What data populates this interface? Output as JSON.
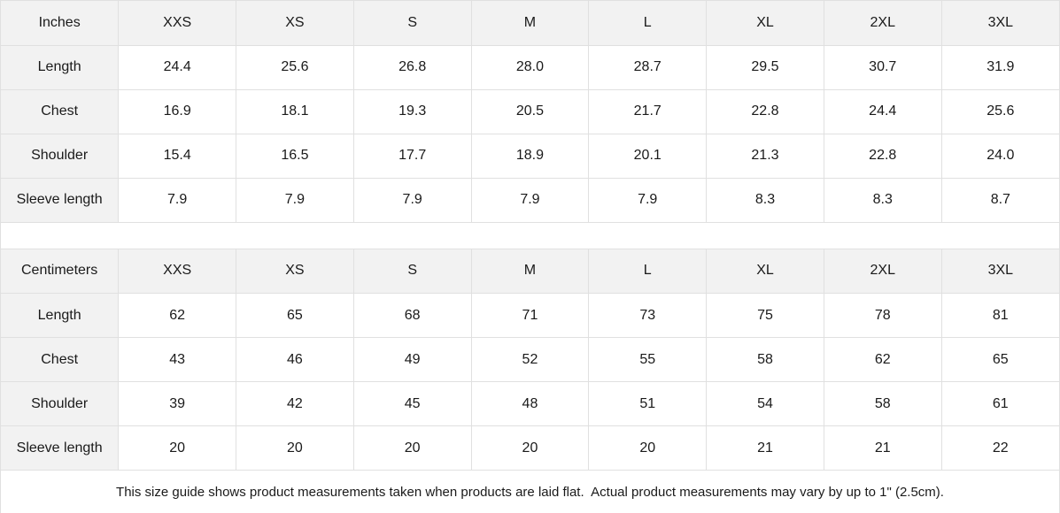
{
  "colors": {
    "border": "#e0e0e0",
    "header_cell_background": "#f2f2f2",
    "text": "#1a1a1a",
    "background": "#ffffff"
  },
  "sizes": [
    "XXS",
    "XS",
    "S",
    "M",
    "L",
    "XL",
    "2XL",
    "3XL"
  ],
  "tables": [
    {
      "unit_label": "Inches",
      "rows": [
        {
          "label": "Length",
          "values": [
            "24.4",
            "25.6",
            "26.8",
            "28.0",
            "28.7",
            "29.5",
            "30.7",
            "31.9"
          ]
        },
        {
          "label": "Chest",
          "values": [
            "16.9",
            "18.1",
            "19.3",
            "20.5",
            "21.7",
            "22.8",
            "24.4",
            "25.6"
          ]
        },
        {
          "label": "Shoulder",
          "values": [
            "15.4",
            "16.5",
            "17.7",
            "18.9",
            "20.1",
            "21.3",
            "22.8",
            "24.0"
          ]
        },
        {
          "label": "Sleeve length",
          "values": [
            "7.9",
            "7.9",
            "7.9",
            "7.9",
            "7.9",
            "8.3",
            "8.3",
            "8.7"
          ]
        }
      ]
    },
    {
      "unit_label": "Centimeters",
      "rows": [
        {
          "label": "Length",
          "values": [
            "62",
            "65",
            "68",
            "71",
            "73",
            "75",
            "78",
            "81"
          ]
        },
        {
          "label": "Chest",
          "values": [
            "43",
            "46",
            "49",
            "52",
            "55",
            "58",
            "62",
            "65"
          ]
        },
        {
          "label": "Shoulder",
          "values": [
            "39",
            "42",
            "45",
            "48",
            "51",
            "54",
            "58",
            "61"
          ]
        },
        {
          "label": "Sleeve length",
          "values": [
            "20",
            "20",
            "20",
            "20",
            "20",
            "21",
            "21",
            "22"
          ]
        }
      ]
    }
  ],
  "footer_note": "This size guide shows product measurements taken when products are laid flat.  Actual product measurements may vary by up to 1\" (2.5cm)."
}
